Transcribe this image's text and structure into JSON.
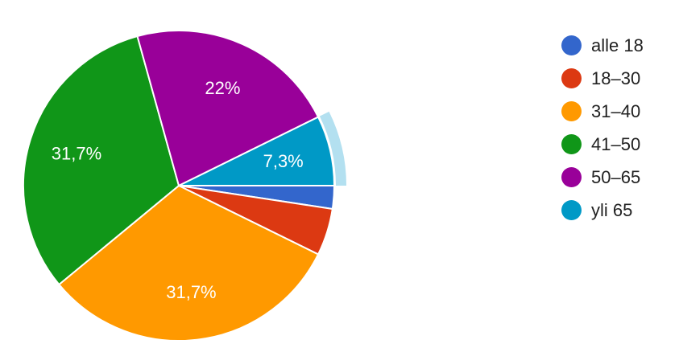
{
  "chart_data": {
    "type": "pie",
    "categories": [
      "alle 18",
      "18–30",
      "31–40",
      "41–50",
      "50–65",
      "yli 65"
    ],
    "values": [
      2.4,
      4.9,
      31.7,
      31.7,
      22.0,
      7.3
    ],
    "data_labels": [
      "",
      "",
      "31,7%",
      "31,7%",
      "22%",
      "7,3%"
    ],
    "colors": [
      "#3366cc",
      "#dc3912",
      "#ff9900",
      "#109618",
      "#990099",
      "#0099c6"
    ],
    "highlighted_slice": "yli 65",
    "highlight_color": "#b3e0f0",
    "legend_position": "right"
  }
}
